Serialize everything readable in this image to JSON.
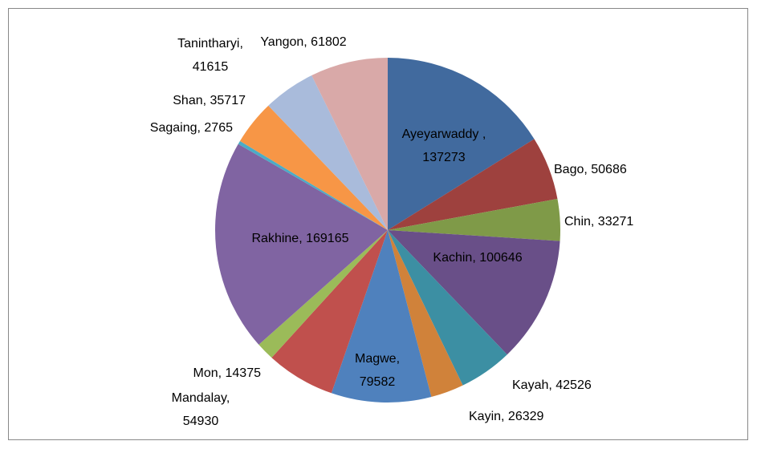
{
  "chart_data": {
    "type": "pie",
    "categories": [
      "Ayeyarwaddy ",
      "Bago",
      "Chin",
      "Kachin",
      "Kayah",
      "Kayin",
      "Magwe",
      "Mandalay",
      "Mon",
      "Rakhine",
      "Sagaing",
      "Shan",
      "Tanintharyi",
      "Yangon"
    ],
    "values": [
      137273,
      50686,
      33271,
      100646,
      42526,
      26329,
      79582,
      54930,
      14375,
      169165,
      2765,
      35717,
      41615,
      61802
    ],
    "value_labels": [
      "Ayeyarwaddy , 137273",
      "Bago, 50686",
      "Chin, 33271",
      "Kachin, 100646",
      "Kayah, 42526",
      "Kayin, 26329",
      "Magwe, 79582",
      "Mandalay, 54930",
      "Mon, 14375",
      "Rakhine, 169165",
      "Sagaing, 2765",
      "Shan, 35717",
      "Tanintharyi, 41615",
      "Yangon, 61802"
    ],
    "colors": [
      "#416a9e",
      "#9e413e",
      "#7f9a48",
      "#694f88",
      "#3c8fa3",
      "#d0823a",
      "#4f81bd",
      "#c0504d",
      "#9bbb59",
      "#8064a2",
      "#4bacc6",
      "#f79646",
      "#a9bbdb",
      "#d9a9a8"
    ]
  }
}
